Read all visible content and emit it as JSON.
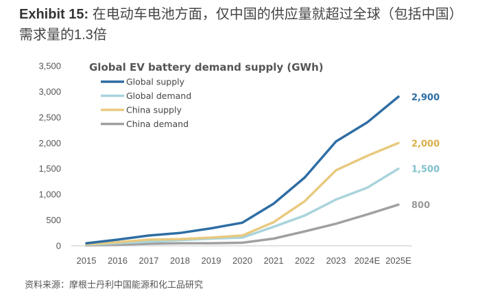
{
  "header": {
    "exhibit": "Exhibit 15:",
    "title": "在电动车电池方面，仅中国的供应量就超过全球（包括中国）需求量的1.3倍"
  },
  "source": "资料来源：摩根士丹利中国能源和化工品研究",
  "chart_data": {
    "type": "line",
    "title": "Global EV battery demand supply (GWh)",
    "xlabel": "",
    "ylabel": "",
    "categories": [
      "2015",
      "2016",
      "2017",
      "2018",
      "2019",
      "2020",
      "2021",
      "2022",
      "2023",
      "2024E",
      "2025E"
    ],
    "ylim": [
      0,
      3500
    ],
    "yticks": [
      0,
      500,
      1000,
      1500,
      2000,
      2500,
      3000,
      3500
    ],
    "ytick_labels": [
      "0",
      "500",
      "1,000",
      "1,500",
      "2,000",
      "2,500",
      "3,000",
      "3,500"
    ],
    "grid": false,
    "legend_position": "top-left",
    "series": [
      {
        "name": "Global supply",
        "color": "#2e6da4",
        "values": [
          50,
          120,
          200,
          250,
          340,
          450,
          820,
          1330,
          2030,
          2400,
          2900
        ],
        "end_label": "2,900"
      },
      {
        "name": "Global demand",
        "color": "#a9d4dc",
        "values": [
          20,
          50,
          80,
          110,
          140,
          160,
          370,
          590,
          900,
          1130,
          1500
        ],
        "end_label": "1,500"
      },
      {
        "name": "China supply",
        "color": "#e8c97f",
        "values": [
          30,
          70,
          120,
          130,
          160,
          200,
          460,
          870,
          1470,
          1750,
          2000
        ],
        "end_label": "2,000"
      },
      {
        "name": "China demand",
        "color": "#a0a0a0",
        "values": [
          10,
          20,
          40,
          50,
          50,
          60,
          140,
          280,
          430,
          610,
          800
        ],
        "end_label": "800"
      }
    ],
    "end_label_colors": {
      "Global supply": "#2e6da4",
      "Global demand": "#7fc0cc",
      "China supply": "#d9b04a",
      "China demand": "#999999"
    }
  }
}
